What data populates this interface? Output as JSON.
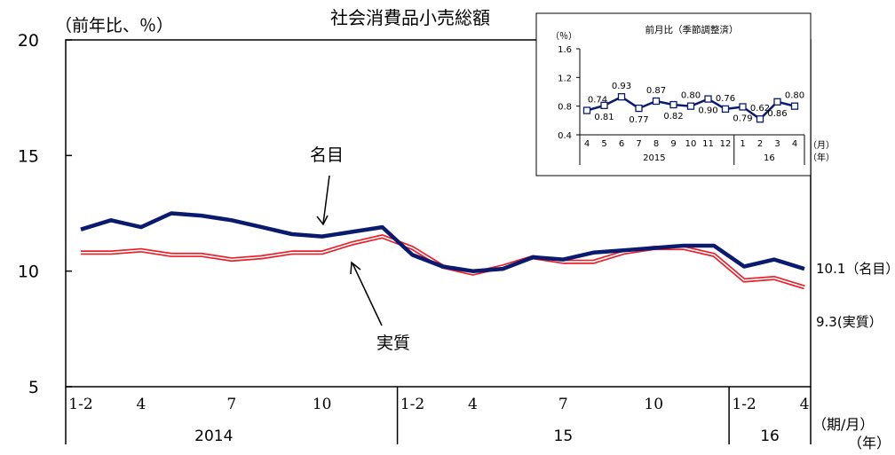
{
  "chart_data": [
    {
      "type": "line",
      "title": "社会消費品小売総額",
      "ylabel": "（前年比、％）",
      "ylim": [
        5,
        20
      ],
      "yticks": [
        "5",
        "10",
        "15",
        "20"
      ],
      "x_month_labels": [
        "1-2",
        "4",
        "7",
        "10",
        "1-2",
        "4",
        "7",
        "10",
        "1-2",
        "4"
      ],
      "x_year_labels": [
        "2014",
        "15",
        "16"
      ],
      "x_unit_label": "（期/月）",
      "x_year_unit_label": "（年）",
      "x": [
        "2014-01/02",
        "2014-03",
        "2014-04",
        "2014-05",
        "2014-06",
        "2014-07",
        "2014-08",
        "2014-09",
        "2014-10",
        "2014-11",
        "2014-12",
        "2015-01/02",
        "2015-03",
        "2015-04",
        "2015-05",
        "2015-06",
        "2015-07",
        "2015-08",
        "2015-09",
        "2015-10",
        "2015-11",
        "2015-12",
        "2016-01/02",
        "2016-03",
        "2016-04"
      ],
      "series": [
        {
          "name": "名目",
          "color": "#0a1a6e",
          "values": [
            11.8,
            12.2,
            11.9,
            12.5,
            12.4,
            12.2,
            11.9,
            11.6,
            11.5,
            11.7,
            11.9,
            10.7,
            10.2,
            10.0,
            10.1,
            10.6,
            10.5,
            10.8,
            10.9,
            11.0,
            11.1,
            11.1,
            10.2,
            10.5,
            10.1
          ]
        },
        {
          "name": "実質",
          "color": "#e8212a",
          "values": [
            10.8,
            10.8,
            10.9,
            10.7,
            10.7,
            10.5,
            10.6,
            10.8,
            10.8,
            11.2,
            11.5,
            11.0,
            10.2,
            9.9,
            10.2,
            10.6,
            10.4,
            10.4,
            10.8,
            11.0,
            11.0,
            10.7,
            9.6,
            9.7,
            9.3
          ]
        }
      ],
      "annotations": {
        "nominal_label": "名目",
        "real_label": "実質",
        "end_nominal": "10.1（名目）",
        "end_real": "9.3(実質）"
      }
    },
    {
      "type": "line",
      "title": "前月比（季節調整済）",
      "ylabel": "（％）",
      "ylim": [
        0.4,
        1.6
      ],
      "yticks": [
        "0.4",
        "0.8",
        "1.2",
        "1.6"
      ],
      "categories": [
        "4",
        "5",
        "6",
        "7",
        "8",
        "9",
        "10",
        "11",
        "12",
        "1",
        "2",
        "3",
        "4"
      ],
      "x_year_labels": [
        "2015",
        "16"
      ],
      "x_unit_label": "（月）",
      "x_year_unit_label": "（年）",
      "series": [
        {
          "name": "",
          "color": "#0a1a6e",
          "values": [
            0.74,
            0.81,
            0.93,
            0.77,
            0.87,
            0.82,
            0.8,
            0.9,
            0.76,
            0.79,
            0.62,
            0.86,
            0.8
          ],
          "labels": [
            "0.74",
            "0.81",
            "0.93",
            "0.77",
            "0.87",
            "0.82",
            "0.80",
            "0.90",
            "0.76",
            "0.79",
            "0.62",
            "0.86",
            "0.80"
          ]
        }
      ]
    }
  ]
}
